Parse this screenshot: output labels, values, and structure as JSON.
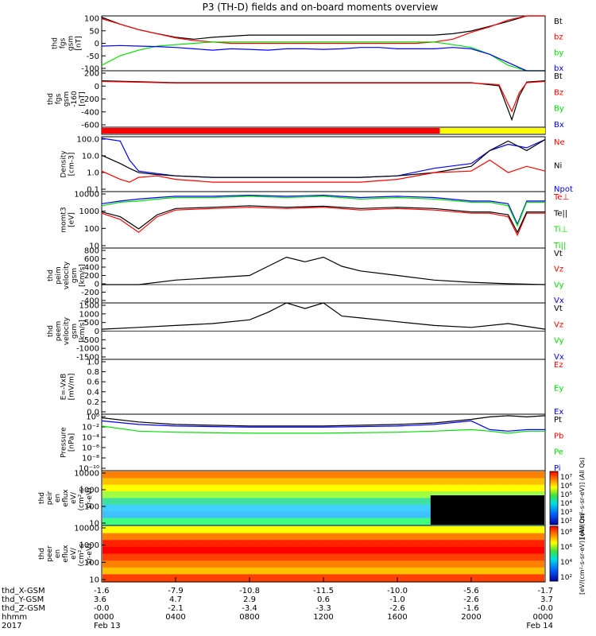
{
  "title": "P3 (TH-D) fields and on-board moments overview",
  "colors": {
    "red": "#ff0000",
    "green": "#00e000",
    "blue": "#0000ff",
    "black": "#000000",
    "yellow": "#ffff00",
    "mode_red": "#ff0000"
  },
  "chart_data": [
    {
      "type": "line",
      "panel": "fgs-gsm",
      "ylabel": [
        "thd",
        "fgs",
        "gsm",
        "[nT]"
      ],
      "yticks": [
        "100",
        "50",
        "0",
        "-50",
        "-100"
      ],
      "ylim": [
        -100,
        100
      ],
      "legend": [
        {
          "label": "Bt",
          "color": "#000000"
        },
        {
          "label": "bz",
          "color": "#ff0000"
        },
        {
          "label": "by",
          "color": "#00e000"
        },
        {
          "label": "bx",
          "color": "#0000ff"
        }
      ],
      "series": [
        {
          "color": "#000000",
          "x": [
            0,
            1,
            2,
            3,
            4,
            5,
            6,
            7,
            8,
            9,
            10,
            11,
            12,
            13,
            14,
            15,
            16,
            17,
            18,
            19,
            20,
            21,
            22,
            23,
            24
          ],
          "values": [
            95,
            70,
            50,
            35,
            22,
            15,
            22,
            26,
            30,
            30,
            30,
            30,
            30,
            30,
            30,
            30,
            30,
            30,
            30,
            35,
            45,
            62,
            80,
            100,
            100
          ]
        },
        {
          "color": "#ff0000",
          "x": [
            0,
            1,
            2,
            3,
            4,
            5,
            6,
            7,
            8,
            9,
            10,
            11,
            12,
            13,
            14,
            15,
            16,
            17,
            18,
            19,
            20,
            21,
            22,
            23,
            24
          ],
          "values": [
            90,
            70,
            50,
            35,
            20,
            10,
            5,
            0,
            0,
            0,
            0,
            0,
            0,
            0,
            0,
            0,
            0,
            0,
            5,
            15,
            40,
            60,
            85,
            100,
            100
          ]
        },
        {
          "color": "#00e000",
          "x": [
            0,
            1,
            2,
            3,
            4,
            5,
            6,
            7,
            8,
            9,
            10,
            11,
            12,
            13,
            14,
            15,
            16,
            17,
            18,
            19,
            20,
            21,
            22,
            23,
            24
          ],
          "values": [
            -80,
            -45,
            -25,
            -10,
            -5,
            0,
            5,
            5,
            5,
            5,
            5,
            5,
            5,
            5,
            5,
            5,
            5,
            5,
            5,
            -5,
            -15,
            -40,
            -80,
            -100,
            -100
          ]
        },
        {
          "color": "#0000ff",
          "x": [
            0,
            1,
            2,
            3,
            4,
            5,
            6,
            7,
            8,
            9,
            10,
            11,
            12,
            13,
            14,
            15,
            16,
            17,
            18,
            19,
            20,
            21,
            22,
            23,
            24
          ],
          "values": [
            -10,
            -8,
            -10,
            -12,
            -15,
            -20,
            -25,
            -20,
            -22,
            -25,
            -20,
            -20,
            -22,
            -20,
            -15,
            -15,
            -20,
            -20,
            -20,
            -15,
            -20,
            -40,
            -70,
            -100,
            -100
          ]
        }
      ]
    },
    {
      "type": "line",
      "panel": "fgs-gsm-zoom",
      "ylabel": [
        "thd",
        "fgs",
        "gsm",
        "-160",
        "[nT]"
      ],
      "yticks": [
        "200",
        "0",
        "-200",
        "-400",
        "-600"
      ],
      "ylim": [
        -700,
        200
      ],
      "legend": [
        {
          "label": "Bt",
          "color": "#000000"
        },
        {
          "label": "Bz",
          "color": "#ff0000"
        },
        {
          "label": "By",
          "color": "#00e000"
        },
        {
          "label": "Bx",
          "color": "#0000ff"
        }
      ],
      "series": [
        {
          "color": "#000000",
          "x": [
            0,
            4,
            8,
            12,
            16,
            20,
            21.5,
            22.2,
            22.6,
            23,
            24
          ],
          "values": [
            40,
            10,
            10,
            10,
            10,
            10,
            -40,
            -580,
            -200,
            20,
            40
          ]
        },
        {
          "color": "#ff0000",
          "x": [
            0,
            4,
            8,
            12,
            16,
            20,
            21.5,
            22.2,
            22.6,
            23,
            24
          ],
          "values": [
            30,
            5,
            5,
            5,
            5,
            5,
            -20,
            -450,
            -150,
            10,
            30
          ]
        }
      ]
    },
    {
      "type": "bar",
      "panel": "mode-bar",
      "segments": [
        {
          "from": 0,
          "to": 18.3,
          "color": "#ff0000"
        },
        {
          "from": 18.3,
          "to": 24,
          "color": "#ffff00"
        }
      ]
    },
    {
      "type": "line",
      "panel": "density",
      "ylabel": [
        "Density",
        "[cm-3]"
      ],
      "yticks": [
        "100.0",
        "10.0",
        "1.0",
        "0.1"
      ],
      "log": true,
      "ylim": [
        0.05,
        150
      ],
      "legend": [
        {
          "label": "Ne",
          "color": "#ff0000"
        },
        {
          "label": "Ni",
          "color": "#000000"
        },
        {
          "label": "Npot",
          "color": "#0000ff"
        }
      ],
      "series": [
        {
          "color": "#0000ff",
          "x": [
            0,
            1,
            1.5,
            2,
            3,
            4,
            6,
            8,
            10,
            12,
            14,
            16,
            18,
            20,
            21,
            22,
            23,
            24
          ],
          "values": [
            120,
            80,
            5,
            1,
            0.7,
            0.5,
            0.4,
            0.4,
            0.4,
            0.4,
            0.4,
            0.5,
            1.5,
            3,
            20,
            50,
            30,
            100
          ]
        },
        {
          "color": "#000000",
          "x": [
            0,
            1,
            1.5,
            2,
            3,
            4,
            6,
            8,
            10,
            12,
            14,
            16,
            18,
            20,
            21,
            22,
            23,
            24
          ],
          "values": [
            10,
            3,
            1.5,
            0.8,
            0.6,
            0.5,
            0.4,
            0.4,
            0.4,
            0.4,
            0.4,
            0.5,
            0.8,
            2,
            20,
            80,
            20,
            100
          ]
        },
        {
          "color": "#ff0000",
          "x": [
            0,
            1,
            1.5,
            2,
            3,
            4,
            6,
            8,
            10,
            12,
            14,
            16,
            18,
            20,
            21,
            22,
            23,
            24
          ],
          "values": [
            1,
            0.3,
            0.2,
            0.4,
            0.5,
            0.3,
            0.2,
            0.2,
            0.2,
            0.2,
            0.2,
            0.3,
            0.8,
            1,
            5,
            0.8,
            2,
            1
          ]
        }
      ]
    },
    {
      "type": "line",
      "panel": "mom-temp",
      "ylabel": [
        "momt3",
        "[eV]"
      ],
      "yticks": [
        "10000",
        "1000",
        "100",
        "10"
      ],
      "log": true,
      "ylim": [
        3,
        12000
      ],
      "legend": [
        {
          "label": "Te⊥",
          "color": "#ff0000"
        },
        {
          "label": "Te||",
          "color": "#000000"
        },
        {
          "label": "Ti⊥",
          "color": "#00e000"
        },
        {
          "label": "Ti||",
          "color": "#00e000"
        }
      ],
      "series": [
        {
          "color": "#0000ff",
          "x": [
            0,
            1,
            2,
            3,
            4,
            6,
            8,
            10,
            12,
            14,
            16,
            18,
            20,
            21,
            22,
            22.5,
            23,
            24
          ],
          "values": [
            2000,
            3000,
            4000,
            5000,
            6000,
            6000,
            7000,
            6000,
            7000,
            5000,
            6000,
            5000,
            3000,
            3000,
            2000,
            100,
            3000,
            3000
          ]
        },
        {
          "color": "#00e000",
          "x": [
            0,
            1,
            2,
            3,
            4,
            6,
            8,
            10,
            12,
            14,
            16,
            18,
            20,
            21,
            22,
            22.5,
            23,
            24
          ],
          "values": [
            1500,
            2500,
            3000,
            4000,
            5000,
            5000,
            6000,
            5000,
            6000,
            4000,
            5000,
            4000,
            2500,
            2500,
            1500,
            80,
            2500,
            2500
          ]
        },
        {
          "color": "#ff0000",
          "x": [
            0,
            1,
            2,
            3,
            4,
            6,
            8,
            10,
            12,
            14,
            16,
            18,
            20,
            21,
            22,
            22.5,
            23,
            24
          ],
          "values": [
            500,
            200,
            30,
            300,
            800,
            1000,
            1200,
            1000,
            1200,
            800,
            1000,
            800,
            500,
            500,
            300,
            20,
            500,
            500
          ]
        },
        {
          "color": "#000000",
          "x": [
            0,
            1,
            2,
            3,
            4,
            6,
            8,
            10,
            12,
            14,
            16,
            18,
            20,
            21,
            22,
            22.5,
            23,
            24
          ],
          "values": [
            600,
            300,
            50,
            400,
            1000,
            1200,
            1500,
            1200,
            1400,
            1000,
            1200,
            1000,
            600,
            600,
            400,
            30,
            600,
            600
          ]
        }
      ]
    },
    {
      "type": "line",
      "panel": "peim-velocity",
      "ylabel": [
        "thd",
        "peim",
        "velocity",
        "gsm",
        "[km/s]"
      ],
      "yticks": [
        "800",
        "600",
        "400",
        "200",
        "0",
        "-200",
        "-400"
      ],
      "ylim": [
        -400,
        800
      ],
      "legend": [
        {
          "label": "Vt",
          "color": "#000000"
        },
        {
          "label": "Vz",
          "color": "#ff0000"
        },
        {
          "label": "Vy",
          "color": "#00e000"
        },
        {
          "label": "Vx",
          "color": "#0000ff"
        }
      ],
      "series": [
        {
          "color": "#000000",
          "x": [
            0,
            2,
            4,
            6,
            8,
            9,
            10,
            11,
            12,
            13,
            14,
            16,
            18,
            20,
            22,
            24
          ],
          "values": [
            0,
            0,
            100,
            150,
            200,
            400,
            600,
            500,
            600,
            400,
            300,
            200,
            100,
            50,
            20,
            0
          ]
        }
      ]
    },
    {
      "type": "line",
      "panel": "peem-velocity",
      "ylabel": [
        "thd",
        "peem",
        "velocity",
        "gsm",
        "[km/s]"
      ],
      "yticks": [
        "1500",
        "1000",
        "500",
        "0",
        "-500",
        "-1000",
        "-1500"
      ],
      "ylim": [
        -1500,
        1500
      ],
      "legend": [
        {
          "label": "Vt",
          "color": "#000000"
        },
        {
          "label": "Vz",
          "color": "#ff0000"
        },
        {
          "label": "Vy",
          "color": "#00e000"
        },
        {
          "label": "Vx",
          "color": "#0000ff"
        }
      ],
      "series": [
        {
          "color": "#000000",
          "x": [
            0,
            2,
            4,
            6,
            8,
            9,
            10,
            11,
            12,
            13,
            14,
            16,
            18,
            20,
            22,
            24
          ],
          "values": [
            100,
            200,
            300,
            400,
            600,
            1000,
            1500,
            1200,
            1500,
            800,
            700,
            500,
            300,
            200,
            400,
            100
          ]
        }
      ]
    },
    {
      "type": "line",
      "panel": "efield",
      "ylabel": [
        "E=-VxB",
        "[mV/m]"
      ],
      "yticks": [
        "1.0",
        "0.8",
        "0.6",
        "0.4",
        "0.2",
        "0.0"
      ],
      "ylim": [
        0,
        1
      ],
      "legend": [
        {
          "label": "Ez",
          "color": "#ff0000"
        },
        {
          "label": "Ey",
          "color": "#00e000"
        },
        {
          "label": "Ex",
          "color": "#0000ff"
        }
      ],
      "series": []
    },
    {
      "type": "line",
      "panel": "pressure",
      "ylabel": [
        "Pressure",
        "[nPa]"
      ],
      "yticks": [
        "10⁰",
        "10⁻²",
        "10⁻⁴",
        "10⁻⁶",
        "10⁻⁸",
        "10⁻¹⁰"
      ],
      "log": true,
      "ylim": [
        1e-10,
        10
      ],
      "legend": [
        {
          "label": "Pt",
          "color": "#000000"
        },
        {
          "label": "Pb",
          "color": "#ff0000"
        },
        {
          "label": "Pe",
          "color": "#00e000"
        },
        {
          "label": "Pi",
          "color": "#0000ff"
        }
      ],
      "series": [
        {
          "color": "#000000",
          "x": [
            0,
            2,
            4,
            8,
            12,
            16,
            18,
            20,
            21,
            22,
            23,
            24
          ],
          "values": [
            2,
            0.3,
            0.1,
            0.05,
            0.05,
            0.1,
            0.2,
            1,
            3,
            5,
            3,
            5
          ]
        },
        {
          "color": "#0000ff",
          "x": [
            0,
            2,
            4,
            8,
            12,
            16,
            18,
            20,
            21,
            22,
            23,
            24
          ],
          "values": [
            0.5,
            0.1,
            0.05,
            0.03,
            0.03,
            0.05,
            0.1,
            0.5,
            0.01,
            0.005,
            0.01,
            0.01
          ]
        },
        {
          "color": "#00e000",
          "x": [
            0,
            2,
            4,
            8,
            12,
            16,
            18,
            20,
            21,
            22,
            23,
            24
          ],
          "values": [
            0.05,
            0.005,
            0.003,
            0.002,
            0.002,
            0.003,
            0.005,
            0.01,
            0.005,
            0.002,
            0.005,
            0.005
          ]
        }
      ]
    },
    {
      "type": "heatmap",
      "panel": "peir-spectrogram",
      "ylabel": [
        "thd",
        "peir",
        "en",
        "eflux",
        "eV/",
        "(cm²-s-",
        "sr-eV)"
      ],
      "yticks": [
        "10000",
        "1000",
        "100",
        "10"
      ],
      "colorbar_ticks": [
        "10⁷",
        "10⁶",
        "10⁵",
        "10⁴",
        "10³",
        "10²"
      ],
      "colorbar_label": "[eV/(cm²-s-sr-eV)] (All Qs)"
    },
    {
      "type": "heatmap",
      "panel": "peer-spectrogram",
      "ylabel": [
        "thd",
        "peer",
        "en",
        "eflux",
        "eV/",
        "(cm²-s-",
        "sr-eV)"
      ],
      "yticks": [
        "10000",
        "1000",
        "100",
        "10"
      ],
      "colorbar_ticks": [
        "10⁸",
        "10⁶",
        "10⁴",
        "10²"
      ],
      "colorbar_label": "[eV/(cm²-s-sr-eV)] (All Qs)"
    }
  ],
  "xaxis": {
    "rows": [
      {
        "label": "thd_X-GSM",
        "values": [
          "-1.6",
          "-7.9",
          "-10.8",
          "-11.5",
          "-10.0",
          "-5.6",
          "-1.7"
        ]
      },
      {
        "label": "thd_Y-GSM",
        "values": [
          "3.6",
          "4.7",
          "2.9",
          "0.6",
          "-1.0",
          "-2.6",
          "3.7"
        ]
      },
      {
        "label": "thd_Z-GSM",
        "values": [
          "-0.0",
          "-2.1",
          "-3.4",
          "-3.3",
          "-2.6",
          "-1.6",
          "-0.0"
        ]
      },
      {
        "label": "hhmm",
        "values": [
          "0000",
          "0400",
          "0800",
          "1200",
          "1600",
          "2000",
          "0000"
        ]
      },
      {
        "label": "2017",
        "values": [
          "Feb 13",
          "",
          "",
          "",
          "",
          "",
          "Feb 14"
        ]
      }
    ]
  }
}
